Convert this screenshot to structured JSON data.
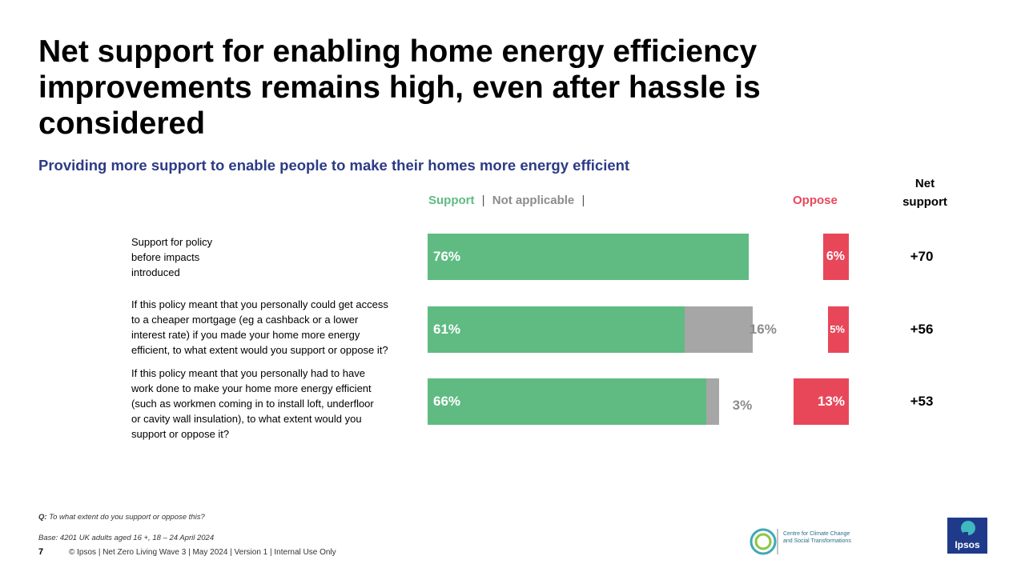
{
  "title": "Net support for enabling home energy efficiency improvements remains high, even after hassle is considered",
  "subtitle": "Providing more support to enable people to make their homes more energy efficient",
  "legend": {
    "support": "Support",
    "separator": "|",
    "not_applicable": "Not applicable",
    "oppose": "Oppose"
  },
  "net_header": {
    "line1": "Net",
    "line2": "support"
  },
  "rows": [
    {
      "label": [
        "Support for policy",
        "before impacts",
        "introduced"
      ],
      "support_label": "76%",
      "na_label": "",
      "oppose_label": "6%",
      "net": "+70"
    },
    {
      "label": [
        "If this policy meant that you personally could get access",
        "to a cheaper mortgage (eg a cashback or a lower",
        "interest rate) if you made your home more energy",
        "efficient, to what extent would you support or oppose it?"
      ],
      "support_label": "61%",
      "na_label": "16%",
      "oppose_label": "5%",
      "net": "+56"
    },
    {
      "label": [
        "If this policy meant that you personally had to have",
        "work done to make your home more energy efficient",
        "(such as workmen coming in to install loft, underfloor",
        "or cavity wall insulation), to what extent would you",
        "support or oppose it?"
      ],
      "support_label": "66%",
      "na_label": "3%",
      "oppose_label": "13%",
      "net": "+53"
    }
  ],
  "chart_data": {
    "type": "bar",
    "orientation": "horizontal",
    "stacked": true,
    "title": "Providing more support to enable people to make their homes more energy efficient",
    "categories": [
      "Support for policy before impacts introduced",
      "If this policy meant that you personally could get access to a cheaper mortgage (eg a cashback or a lower interest rate) if you made your home more energy efficient, to what extent would you support or oppose it?",
      "If this policy meant that you personally had to have work done to make your home more energy efficient (such as workmen coming in to install loft, underfloor or cavity wall insulation), to what extent would you support or oppose it?"
    ],
    "series": [
      {
        "name": "Support",
        "color": "#5fbb82",
        "values": [
          76,
          61,
          66
        ]
      },
      {
        "name": "Not applicable",
        "color": "#a6a6a6",
        "values": [
          0,
          16,
          3
        ]
      },
      {
        "name": "Oppose",
        "color": "#e8475a",
        "values": [
          6,
          5,
          13
        ]
      }
    ],
    "net_support": [
      70,
      56,
      53
    ],
    "xlim": [
      0,
      100
    ],
    "legend_position": "top"
  },
  "footnotes": {
    "question_label": "Q:",
    "question": "To what extent do you support or oppose this?",
    "base": "Base: 4201 UK adults aged 16 +, 18 – 24 April 2024",
    "page": "7",
    "copyright": "© Ipsos | Net Zero Living Wave 3 | May 2024 | Version 1 | Internal Use Only"
  },
  "logos": {
    "cast_line1": "Centre for Climate Change",
    "cast_line2": "and Social Transformations",
    "ipsos": "Ipsos"
  }
}
